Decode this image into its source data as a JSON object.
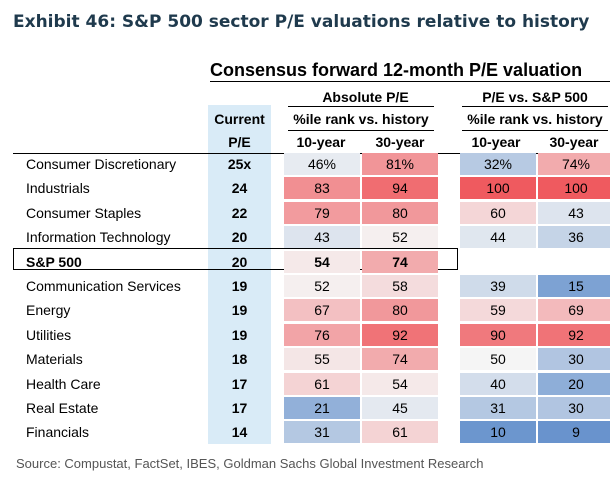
{
  "exhibit_title": "Exhibit 46: S&P 500 sector P/E valuations relative to history",
  "source": "Source: Compustat, FactSet, IBES, Goldman Sachs Global Investment Research",
  "chart_data": {
    "type": "table",
    "title": "Consensus forward 12-month P/E valuation",
    "headers": {
      "current_1": "Current",
      "current_2": "P/E",
      "absolute": "Absolute P/E",
      "relative": "P/E vs. S&P 500",
      "pctile_abs": "%ile rank vs. history",
      "pctile_rel": "%ile rank vs. history",
      "abs_10": "10-year",
      "abs_30": "30-year",
      "rel_10": "10-year",
      "rel_30": "30-year"
    },
    "columns": [
      "Current P/E",
      "Absolute 10-year",
      "Absolute 30-year",
      "Relative 10-year",
      "Relative 30-year"
    ],
    "rows": [
      {
        "name": "Consumer Discretionary",
        "current": "25x",
        "abs10": "46%",
        "abs30": "81%",
        "rel10": "32%",
        "rel30": "74%"
      },
      {
        "name": "Industrials",
        "current": "24",
        "abs10": "83",
        "abs30": "94",
        "rel10": "100",
        "rel30": "100"
      },
      {
        "name": "Consumer Staples",
        "current": "22",
        "abs10": "79",
        "abs30": "80",
        "rel10": "60",
        "rel30": "43"
      },
      {
        "name": "Information Technology",
        "current": "20",
        "abs10": "43",
        "abs30": "52",
        "rel10": "44",
        "rel30": "36"
      },
      {
        "name": "S&P 500",
        "current": "20",
        "abs10": "54",
        "abs30": "74",
        "rel10": "",
        "rel30": "",
        "highlight": true
      },
      {
        "name": "Communication Services",
        "current": "19",
        "abs10": "52",
        "abs30": "58",
        "rel10": "39",
        "rel30": "15"
      },
      {
        "name": "Energy",
        "current": "19",
        "abs10": "67",
        "abs30": "80",
        "rel10": "59",
        "rel30": "69"
      },
      {
        "name": "Utilities",
        "current": "19",
        "abs10": "76",
        "abs30": "92",
        "rel10": "90",
        "rel30": "92"
      },
      {
        "name": "Materials",
        "current": "18",
        "abs10": "55",
        "abs30": "74",
        "rel10": "50",
        "rel30": "30"
      },
      {
        "name": "Health Care",
        "current": "17",
        "abs10": "61",
        "abs30": "54",
        "rel10": "40",
        "rel30": "20"
      },
      {
        "name": "Real Estate",
        "current": "17",
        "abs10": "21",
        "abs30": "45",
        "rel10": "31",
        "rel30": "30"
      },
      {
        "name": "Financials",
        "current": "14",
        "abs10": "31",
        "abs30": "61",
        "rel10": "10",
        "rel30": "9"
      }
    ],
    "color_scale": {
      "low": "#4a7ec4",
      "mid": "#f5f5f5",
      "high": "#ef5a5f"
    }
  }
}
